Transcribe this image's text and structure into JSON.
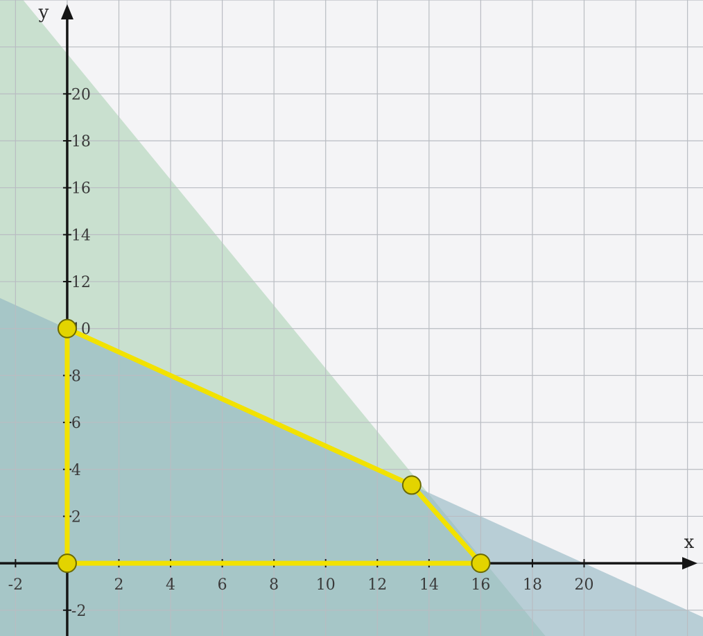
{
  "chart_data": {
    "type": "area",
    "title": "",
    "xlabel": "x",
    "ylabel": "y",
    "xlim": [
      -2.6,
      24.6
    ],
    "ylim": [
      -3.1,
      24.0
    ],
    "grid": true,
    "x_ticks": [
      -2,
      2,
      4,
      6,
      8,
      10,
      12,
      14,
      16,
      18,
      20
    ],
    "y_ticks": [
      -2,
      2,
      4,
      6,
      8,
      10,
      12,
      14,
      16,
      18,
      20
    ],
    "regions": [
      {
        "name": "",
        "color": "#a6cfae",
        "boundary": [
          [
            -2.6,
            25.2
          ],
          [
            18.5,
            -3.1
          ]
        ]
      },
      {
        "name": "",
        "color": "#8fb4c2",
        "boundary": [
          [
            -2.6,
            11.3
          ],
          [
            24.6,
            -2.3
          ]
        ]
      }
    ],
    "feasible_region": {
      "color": "#f2e200",
      "vertices": [
        [
          0,
          0
        ],
        [
          0,
          10
        ],
        [
          13.33,
          3.33
        ],
        [
          16,
          0
        ]
      ]
    },
    "vertex_points": [
      {
        "x": 0,
        "y": 10
      },
      {
        "x": 13.33,
        "y": 3.33
      },
      {
        "x": 0,
        "y": 0
      },
      {
        "x": 16,
        "y": 0
      }
    ],
    "colors": {
      "axis": "#151515",
      "grid": "#b9bcc2",
      "background": "#f4f4f6",
      "vertex_fill": "#e3d400",
      "vertex_stroke": "#6b6a00"
    }
  }
}
